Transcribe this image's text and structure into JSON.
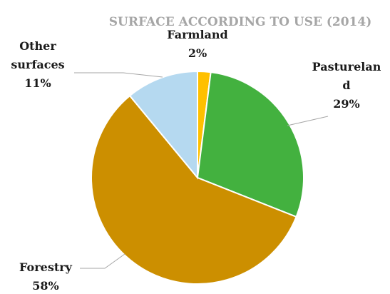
{
  "chart_data": {
    "type": "pie",
    "title": "SURFACE ACCORDING TO USE (2014)",
    "slices": [
      {
        "name": "Farmland",
        "value": 2,
        "label_lines": [
          "Farmland",
          "2%"
        ],
        "color": "#ffc000"
      },
      {
        "name": "Pastureland",
        "value": 29,
        "label_lines": [
          "Pasturelan",
          "d",
          "29%"
        ],
        "color": "#43b13f"
      },
      {
        "name": "Forestry",
        "value": 58,
        "label_lines": [
          "Forestry",
          "58%"
        ],
        "color": "#cc8f00"
      },
      {
        "name": "Other surfaces",
        "value": 11,
        "label_lines": [
          "Other",
          "surfaces",
          "11%"
        ],
        "color": "#b5d9f0"
      }
    ],
    "start_angle_deg": 0,
    "direction": "clockwise",
    "legend": "none",
    "data_labels": "outside with leader lines"
  }
}
